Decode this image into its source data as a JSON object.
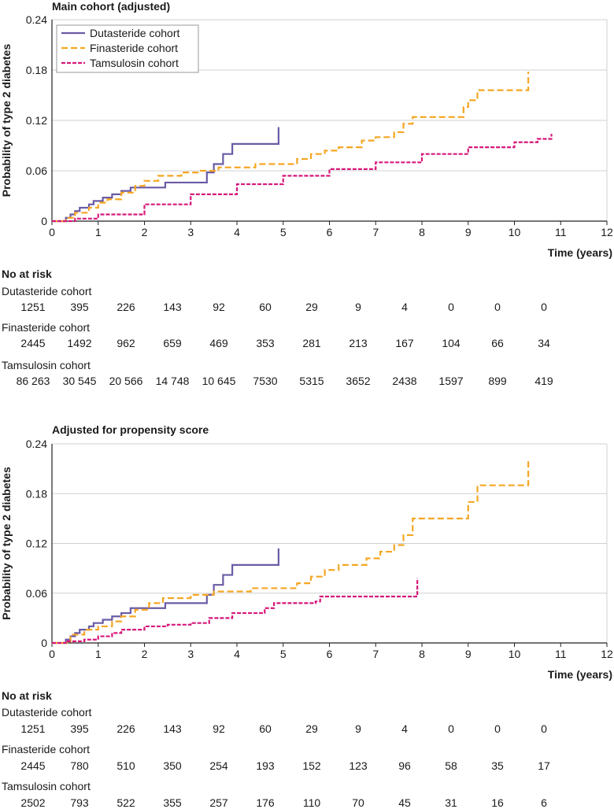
{
  "chart_data": [
    {
      "type": "line",
      "title": "Main cohort (adjusted)",
      "xlabel": "Time (years)",
      "ylabel": "Probability of type 2 diabetes",
      "xlim": [
        0,
        12
      ],
      "ylim": [
        0,
        0.24
      ],
      "x_ticks": [
        "0",
        "1",
        "2",
        "3",
        "4",
        "5",
        "6",
        "7",
        "8",
        "9",
        "10",
        "11",
        "12"
      ],
      "y_ticks": [
        "0",
        "0.06",
        "0.12",
        "0.18",
        "0.24"
      ],
      "grid": "horizontal",
      "legend_position": "top-left",
      "series": [
        {
          "name": "Dutasteride cohort",
          "color": "#6b5ba6",
          "style": "solid",
          "points": [
            [
              0,
              0
            ],
            [
              0.2,
              0
            ],
            [
              0.3,
              0.004
            ],
            [
              0.4,
              0.008
            ],
            [
              0.5,
              0.012
            ],
            [
              0.6,
              0.016
            ],
            [
              0.8,
              0.02
            ],
            [
              0.9,
              0.024
            ],
            [
              1.1,
              0.028
            ],
            [
              1.3,
              0.032
            ],
            [
              1.5,
              0.036
            ],
            [
              1.7,
              0.04
            ],
            [
              2.4,
              0.04
            ],
            [
              2.45,
              0.046
            ],
            [
              3.3,
              0.046
            ],
            [
              3.35,
              0.058
            ],
            [
              3.5,
              0.068
            ],
            [
              3.7,
              0.08
            ],
            [
              3.9,
              0.092
            ],
            [
              4.9,
              0.092
            ],
            [
              4.9,
              0.112
            ]
          ]
        },
        {
          "name": "Finasteride cohort",
          "color": "#f5a623",
          "style": "dashed",
          "points": [
            [
              0,
              0
            ],
            [
              0.3,
              0.004
            ],
            [
              0.5,
              0.01
            ],
            [
              0.8,
              0.016
            ],
            [
              1.0,
              0.022
            ],
            [
              1.2,
              0.026
            ],
            [
              1.5,
              0.034
            ],
            [
              1.8,
              0.042
            ],
            [
              2.0,
              0.048
            ],
            [
              2.3,
              0.054
            ],
            [
              2.8,
              0.058
            ],
            [
              3.2,
              0.06
            ],
            [
              3.6,
              0.064
            ],
            [
              4.0,
              0.064
            ],
            [
              4.4,
              0.068
            ],
            [
              5.0,
              0.068
            ],
            [
              5.3,
              0.074
            ],
            [
              5.6,
              0.08
            ],
            [
              5.9,
              0.084
            ],
            [
              6.2,
              0.088
            ],
            [
              6.7,
              0.096
            ],
            [
              7.0,
              0.1
            ],
            [
              7.4,
              0.106
            ],
            [
              7.6,
              0.116
            ],
            [
              7.8,
              0.124
            ],
            [
              8.8,
              0.124
            ],
            [
              8.9,
              0.136
            ],
            [
              9.0,
              0.144
            ],
            [
              9.2,
              0.156
            ],
            [
              10.3,
              0.156
            ],
            [
              10.3,
              0.178
            ]
          ]
        },
        {
          "name": "Tamsulosin cohort",
          "color": "#d6177a",
          "style": "dashed",
          "points": [
            [
              0,
              0
            ],
            [
              0.5,
              0.003
            ],
            [
              1,
              0.008
            ],
            [
              2,
              0.02
            ],
            [
              3,
              0.032
            ],
            [
              4,
              0.044
            ],
            [
              5,
              0.054
            ],
            [
              6,
              0.062
            ],
            [
              7,
              0.07
            ],
            [
              8,
              0.08
            ],
            [
              9,
              0.088
            ],
            [
              10,
              0.094
            ],
            [
              10.5,
              0.098
            ],
            [
              10.8,
              0.1
            ],
            [
              10.8,
              0.104
            ]
          ]
        }
      ],
      "no_at_risk": {
        "heading": "No at risk",
        "rows": [
          {
            "label": "Dutasteride cohort",
            "values": [
              "1251",
              "395",
              "226",
              "143",
              "92",
              "60",
              "29",
              "9",
              "4",
              "0",
              "0",
              "0"
            ]
          },
          {
            "label": "Finasteride cohort",
            "values": [
              "2445",
              "1492",
              "962",
              "659",
              "469",
              "353",
              "281",
              "213",
              "167",
              "104",
              "66",
              "34"
            ]
          },
          {
            "label": "Tamsulosin cohort",
            "values": [
              "86 263",
              "30 545",
              "20 566",
              "14 748",
              "10 645",
              "7530",
              "5315",
              "3652",
              "2438",
              "1597",
              "899",
              "419"
            ]
          }
        ]
      }
    },
    {
      "type": "line",
      "title": "Adjusted for propensity score",
      "xlabel": "Time (years)",
      "ylabel": "Probability of type 2 diabetes",
      "xlim": [
        0,
        12
      ],
      "ylim": [
        0,
        0.24
      ],
      "x_ticks": [
        "0",
        "1",
        "2",
        "3",
        "4",
        "5",
        "6",
        "7",
        "8",
        "9",
        "10",
        "11",
        "12"
      ],
      "y_ticks": [
        "0",
        "0.06",
        "0.12",
        "0.18",
        "0.24"
      ],
      "grid": "horizontal",
      "series": [
        {
          "name": "Dutasteride cohort",
          "color": "#6b5ba6",
          "style": "solid",
          "points": [
            [
              0,
              0
            ],
            [
              0.2,
              0
            ],
            [
              0.3,
              0.004
            ],
            [
              0.4,
              0.008
            ],
            [
              0.5,
              0.012
            ],
            [
              0.6,
              0.016
            ],
            [
              0.8,
              0.02
            ],
            [
              0.9,
              0.024
            ],
            [
              1.1,
              0.028
            ],
            [
              1.3,
              0.032
            ],
            [
              1.5,
              0.036
            ],
            [
              1.7,
              0.042
            ],
            [
              2.4,
              0.042
            ],
            [
              2.45,
              0.048
            ],
            [
              3.3,
              0.048
            ],
            [
              3.35,
              0.058
            ],
            [
              3.5,
              0.07
            ],
            [
              3.7,
              0.082
            ],
            [
              3.9,
              0.094
            ],
            [
              4.9,
              0.094
            ],
            [
              4.9,
              0.114
            ]
          ]
        },
        {
          "name": "Finasteride cohort",
          "color": "#f5a623",
          "style": "dashed",
          "points": [
            [
              0,
              0
            ],
            [
              0.4,
              0.01
            ],
            [
              0.7,
              0.016
            ],
            [
              1.0,
              0.02
            ],
            [
              1.3,
              0.026
            ],
            [
              1.5,
              0.032
            ],
            [
              1.8,
              0.04
            ],
            [
              2.1,
              0.048
            ],
            [
              2.4,
              0.054
            ],
            [
              3.0,
              0.058
            ],
            [
              3.5,
              0.062
            ],
            [
              4.0,
              0.062
            ],
            [
              4.3,
              0.066
            ],
            [
              5.0,
              0.066
            ],
            [
              5.3,
              0.072
            ],
            [
              5.6,
              0.08
            ],
            [
              5.9,
              0.088
            ],
            [
              6.2,
              0.094
            ],
            [
              6.8,
              0.102
            ],
            [
              7.1,
              0.11
            ],
            [
              7.4,
              0.118
            ],
            [
              7.6,
              0.13
            ],
            [
              7.8,
              0.15
            ],
            [
              8.9,
              0.15
            ],
            [
              9.0,
              0.17
            ],
            [
              9.2,
              0.19
            ],
            [
              10.3,
              0.19
            ],
            [
              10.3,
              0.22
            ]
          ]
        },
        {
          "name": "Tamsulosin cohort",
          "color": "#d6177a",
          "style": "dashed",
          "points": [
            [
              0,
              0
            ],
            [
              0.3,
              0.002
            ],
            [
              0.7,
              0.004
            ],
            [
              1.0,
              0.008
            ],
            [
              1.3,
              0.012
            ],
            [
              1.5,
              0.016
            ],
            [
              2.0,
              0.02
            ],
            [
              2.5,
              0.022
            ],
            [
              3.0,
              0.024
            ],
            [
              3.4,
              0.03
            ],
            [
              3.9,
              0.036
            ],
            [
              4.6,
              0.042
            ],
            [
              4.8,
              0.048
            ],
            [
              5.7,
              0.05
            ],
            [
              5.8,
              0.056
            ],
            [
              6.5,
              0.056
            ],
            [
              7.9,
              0.056
            ],
            [
              7.9,
              0.078
            ]
          ]
        }
      ],
      "no_at_risk": {
        "heading": "No at risk",
        "rows": [
          {
            "label": "Dutasteride cohort",
            "values": [
              "1251",
              "395",
              "226",
              "143",
              "92",
              "60",
              "29",
              "9",
              "4",
              "0",
              "0",
              "0"
            ]
          },
          {
            "label": "Finasteride cohort",
            "values": [
              "2445",
              "780",
              "510",
              "350",
              "254",
              "193",
              "152",
              "123",
              "96",
              "58",
              "35",
              "17"
            ]
          },
          {
            "label": "Tamsulosin cohort",
            "values": [
              "2502",
              "793",
              "522",
              "355",
              "257",
              "176",
              "110",
              "70",
              "45",
              "31",
              "16",
              "6"
            ]
          }
        ]
      }
    }
  ]
}
